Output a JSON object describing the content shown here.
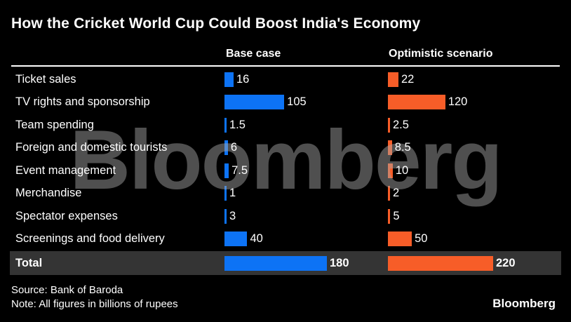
{
  "title": "How the Cricket World Cup Could Boost India's Economy",
  "columns": [
    {
      "label": "Base case"
    },
    {
      "label": "Optimistic scenario"
    }
  ],
  "watermark": "Bloomberg",
  "colors": {
    "background": "#000000",
    "base_bar": "#0d73f5",
    "optimistic_bar": "#f75d28",
    "total_band": "#343434",
    "text": "#ffffff"
  },
  "chart_data": {
    "type": "bar",
    "orientation": "horizontal",
    "title": "How the Cricket World Cup Could Boost India's Economy",
    "unit_note": "billions of rupees",
    "categories": [
      "Ticket sales",
      "TV rights and sponsorship",
      "Team spending",
      "Foreign and domestic tourists",
      "Event management",
      "Merchandise",
      "Spectator expenses",
      "Screenings and food delivery"
    ],
    "series": [
      {
        "name": "Base case",
        "color": "#0d73f5",
        "values": [
          16,
          105,
          1.5,
          6,
          7.5,
          1,
          3,
          40
        ],
        "total": 180
      },
      {
        "name": "Optimistic scenario",
        "color": "#f75d28",
        "values": [
          22,
          120,
          2.5,
          8.5,
          10,
          2,
          5,
          50
        ],
        "total": 220
      }
    ],
    "total_label": "Total",
    "value_labels_shown": true,
    "legend_position": "column headers",
    "grid": false
  },
  "footer": {
    "source": "Source: Bank of Baroda",
    "note": "Note: All figures in billions of rupees",
    "logo": "Bloomberg"
  }
}
